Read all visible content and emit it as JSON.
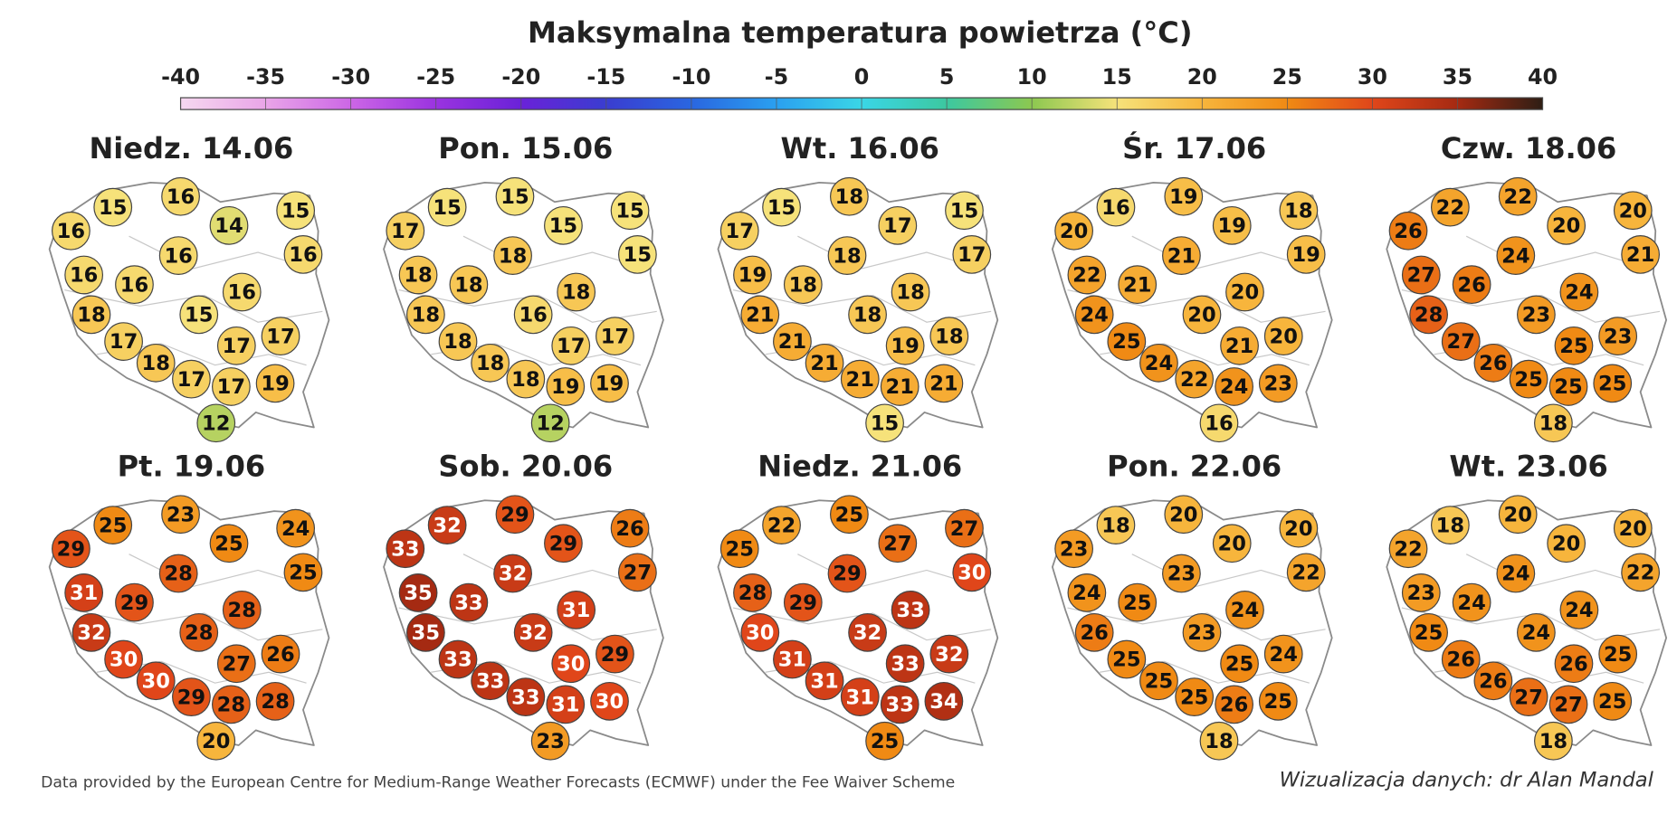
{
  "title": "Maksymalna temperatura powietrza (°C)",
  "scale": {
    "ticks": [
      -40,
      -35,
      -30,
      -25,
      -20,
      -15,
      -10,
      -5,
      0,
      5,
      10,
      15,
      20,
      25,
      30,
      35,
      40
    ],
    "colors": [
      "#f6d8f0",
      "#e9a5e8",
      "#cc66e6",
      "#9a33e0",
      "#6a22d8",
      "#3a3dd0",
      "#2a66e0",
      "#2aa0f0",
      "#3ad6e6",
      "#3cc8a0",
      "#8cc850",
      "#f6e27a",
      "#f7b53c",
      "#f08a14",
      "#e0461a",
      "#a52a12",
      "#2e1e14"
    ]
  },
  "panels": [
    {
      "title": "Niedz. 14.06",
      "values": [
        16,
        15,
        16,
        14,
        15,
        16,
        16,
        16,
        16,
        16,
        18,
        15,
        17,
        17,
        17,
        18,
        17,
        17,
        19,
        12
      ]
    },
    {
      "title": "Pon. 15.06",
      "values": [
        17,
        15,
        15,
        15,
        15,
        15,
        18,
        18,
        18,
        18,
        18,
        16,
        18,
        17,
        17,
        18,
        18,
        19,
        19,
        12
      ]
    },
    {
      "title": "Wt. 16.06",
      "values": [
        17,
        15,
        18,
        17,
        15,
        17,
        18,
        19,
        18,
        18,
        21,
        18,
        21,
        19,
        18,
        21,
        21,
        21,
        21,
        15
      ]
    },
    {
      "title": "Śr. 17.06",
      "values": [
        20,
        16,
        19,
        19,
        18,
        19,
        21,
        22,
        21,
        20,
        24,
        20,
        25,
        21,
        20,
        24,
        22,
        24,
        23,
        16
      ]
    },
    {
      "title": "Czw. 18.06",
      "values": [
        26,
        22,
        22,
        20,
        20,
        21,
        24,
        27,
        26,
        24,
        28,
        23,
        27,
        25,
        23,
        26,
        25,
        25,
        25,
        18
      ]
    },
    {
      "title": "Pt. 19.06",
      "values": [
        29,
        25,
        23,
        25,
        24,
        25,
        28,
        31,
        29,
        28,
        32,
        28,
        30,
        27,
        26,
        30,
        29,
        28,
        28,
        20
      ]
    },
    {
      "title": "Sob. 20.06",
      "values": [
        33,
        32,
        29,
        29,
        26,
        27,
        32,
        35,
        33,
        31,
        35,
        32,
        33,
        30,
        29,
        33,
        33,
        31,
        30,
        23
      ]
    },
    {
      "title": "Niedz. 21.06",
      "values": [
        25,
        22,
        25,
        27,
        27,
        30,
        29,
        28,
        29,
        33,
        30,
        32,
        31,
        33,
        32,
        31,
        31,
        33,
        34,
        25
      ]
    },
    {
      "title": "Pon. 22.06",
      "values": [
        23,
        18,
        20,
        20,
        20,
        22,
        23,
        24,
        25,
        24,
        26,
        23,
        25,
        25,
        24,
        25,
        25,
        26,
        25,
        18
      ]
    },
    {
      "title": "Wt. 23.06",
      "values": [
        22,
        18,
        20,
        20,
        20,
        22,
        24,
        23,
        24,
        24,
        25,
        24,
        26,
        26,
        25,
        26,
        27,
        27,
        25,
        18
      ]
    }
  ],
  "footer_left": "Data provided by the European Centre for Medium-Range Weather Forecasts (ECMWF) under the Fee Waiver Scheme",
  "footer_right": "Wizualizacja danych: dr Alan Mandal"
}
